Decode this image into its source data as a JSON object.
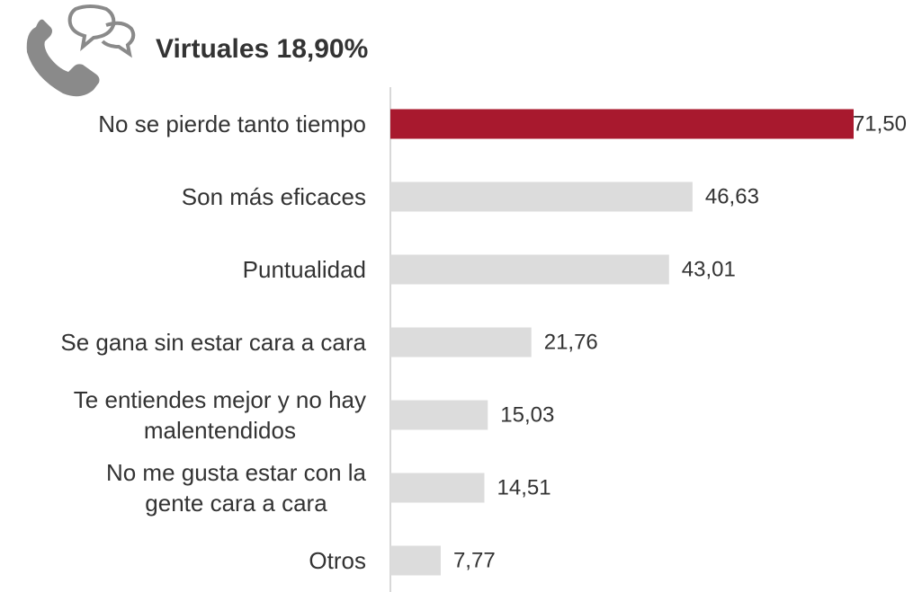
{
  "chart_data": {
    "type": "barh",
    "title": "Virtuales 18,90%",
    "categories": [
      "No se pierde tanto tiempo",
      "Son más eficaces",
      "Puntualidad",
      "Se gana sin estar cara a cara",
      "Te entiendes mejor y no hay\nmalentendidos",
      "No me gusta estar con la\ngente cara a cara",
      "Otros"
    ],
    "values": [
      71.5,
      46.63,
      43.01,
      21.76,
      15.03,
      14.51,
      7.77
    ],
    "value_labels": [
      "71,50",
      "46,63",
      "43,01",
      "21,76",
      "15,03",
      "14,51",
      "7,77"
    ],
    "colors": [
      "#a8192e",
      "#dcdcdc",
      "#dcdcdc",
      "#dcdcdc",
      "#dcdcdc",
      "#dcdcdc",
      "#dcdcdc"
    ]
  }
}
